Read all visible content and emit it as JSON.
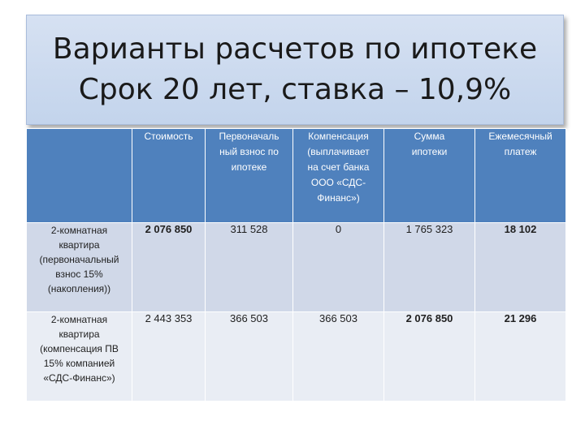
{
  "title": {
    "line1": "Варианты расчетов по ипотеке",
    "line2": "Срок 20 лет, ставка – 10,9%"
  },
  "table": {
    "headers": [
      "",
      "Стоимость",
      "Первоначаль ный взнос по ипотеке",
      "Компенсация (выплачивает на счет банка ООО «СДС-Финанс»)",
      "Сумма ипотеки",
      "Ежемесячный платеж"
    ],
    "rows": [
      {
        "label": "2-комнатная квартира (первоначальный взнос 15% (накопления))",
        "cost": "2 076 850",
        "down_payment": "311 528",
        "compensation": "0",
        "mortgage_sum": "1 765 323",
        "monthly_payment": "18 102"
      },
      {
        "label": "2-комнатная квартира (компенсация ПВ 15% компанией «СДС-Финанс»)",
        "cost": "2 443 353",
        "down_payment": "366 503",
        "compensation": "366 503",
        "mortgage_sum": "2 076 850",
        "monthly_payment": "21 296"
      }
    ]
  }
}
